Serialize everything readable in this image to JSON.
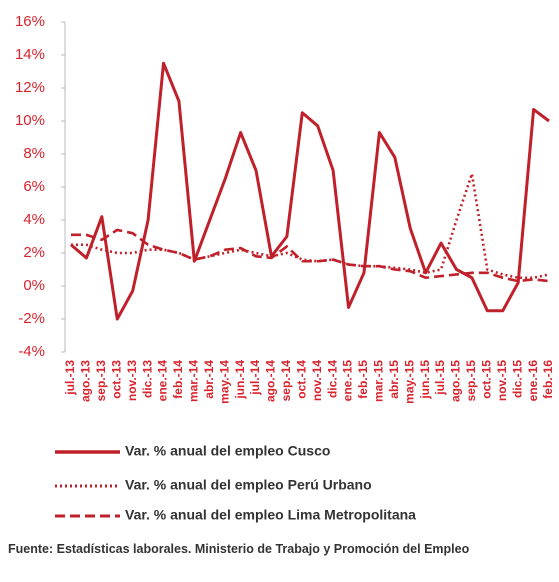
{
  "chart_data": {
    "type": "line",
    "categories": [
      "jul.-13",
      "ago.-13",
      "sep.-13",
      "oct.-13",
      "nov.-13",
      "dic.-13",
      "ene.-14",
      "feb.-14",
      "mar.-14",
      "abr.-14",
      "may.-14",
      "jun.-14",
      "jul.-14",
      "ago.-14",
      "sep.-14",
      "oct.-14",
      "nov.-14",
      "dic.-14",
      "ene.-15",
      "feb.-15",
      "mar.-15",
      "abr.-15",
      "may.-15",
      "jun.-15",
      "jul.-15",
      "ago.-15",
      "sep.-15",
      "oct.-15",
      "nov.-15",
      "dic.-15",
      "ene.-16",
      "feb.-16"
    ],
    "series": [
      {
        "name": "Var. % anual del empleo Cusco",
        "color": "#c0202a",
        "line_style": "solid",
        "values": [
          2.5,
          1.7,
          4.2,
          -2.0,
          -0.3,
          4.0,
          13.5,
          11.2,
          1.5,
          4.0,
          6.5,
          9.3,
          7.0,
          1.8,
          3.0,
          10.5,
          9.7,
          7.0,
          -1.3,
          0.8,
          9.3,
          7.8,
          3.5,
          0.8,
          2.6,
          1.0,
          0.5,
          -1.5,
          -1.5,
          0.2,
          10.7,
          10.0
        ]
      },
      {
        "name": "Var. % anual del empleo Perú Urbano",
        "color": "#c0202a",
        "line_style": "dotted",
        "values": [
          2.5,
          2.5,
          2.2,
          2.0,
          2.0,
          2.2,
          2.2,
          2.0,
          1.6,
          1.8,
          2.0,
          2.2,
          2.0,
          1.8,
          2.0,
          1.6,
          1.5,
          1.6,
          1.3,
          1.2,
          1.2,
          1.1,
          1.0,
          0.8,
          1.0,
          4.0,
          6.8,
          1.0,
          0.7,
          0.5,
          0.5,
          0.7
        ]
      },
      {
        "name": "Var. % anual del empleo Lima Metropolitana",
        "color": "#c0202a",
        "line_style": "dashed",
        "values": [
          3.1,
          3.1,
          2.8,
          3.4,
          3.2,
          2.5,
          2.2,
          2.0,
          1.6,
          1.8,
          2.2,
          2.3,
          1.8,
          1.7,
          2.4,
          1.5,
          1.5,
          1.6,
          1.3,
          1.2,
          1.2,
          1.0,
          0.9,
          0.5,
          0.6,
          0.7,
          0.8,
          0.8,
          0.5,
          0.3,
          0.4,
          0.3
        ]
      }
    ],
    "ylim": [
      -4,
      16
    ],
    "yticks": [
      {
        "value": -4,
        "label": "-4%"
      },
      {
        "value": -2,
        "label": "-2%"
      },
      {
        "value": 0,
        "label": "0%"
      },
      {
        "value": 2,
        "label": "2%"
      },
      {
        "value": 4,
        "label": "4%"
      },
      {
        "value": 6,
        "label": "6%"
      },
      {
        "value": 8,
        "label": "8%"
      },
      {
        "value": 10,
        "label": "10%"
      },
      {
        "value": 12,
        "label": "12%"
      },
      {
        "value": 14,
        "label": "14%"
      },
      {
        "value": 16,
        "label": "16%"
      }
    ],
    "source": "Fuente: Estadísticas laborales. Ministerio de Trabajo y Promoción del Empleo"
  }
}
